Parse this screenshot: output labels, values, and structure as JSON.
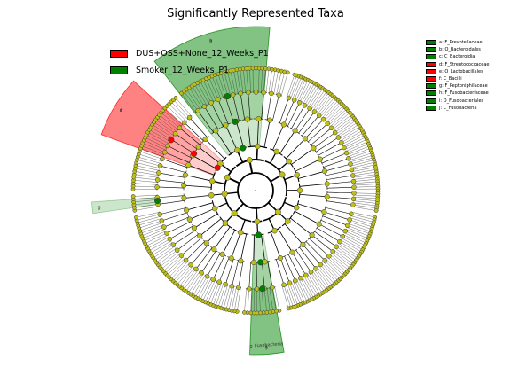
{
  "chart_data": {
    "type": "cladogram",
    "title": "Significantly Represented Taxa",
    "legend": {
      "placement": "top-left",
      "groups": [
        {
          "name": "DUS+OSS+None_12_Weeks_P1",
          "color": "#ff0000"
        },
        {
          "name": "Smoker_12_Weeks_P1",
          "color": "#008000"
        }
      ]
    },
    "clade_legend": {
      "placement": "top-right",
      "items": [
        {
          "letter": "a",
          "label": "a: F_Prevotellaceae",
          "group": "Smoker_12_Weeks_P1",
          "color": "#008000"
        },
        {
          "letter": "b",
          "label": "b: O_Bacteroidales",
          "group": "Smoker_12_Weeks_P1",
          "color": "#008000"
        },
        {
          "letter": "c",
          "label": "c: C_Bacteroidia",
          "group": "Smoker_12_Weeks_P1",
          "color": "#008000"
        },
        {
          "letter": "d",
          "label": "d: F_Streptococcaceae",
          "group": "DUS+OSS+None_12_Weeks_P1",
          "color": "#ff0000"
        },
        {
          "letter": "e",
          "label": "e: O_Lactobacillales",
          "group": "DUS+OSS+None_12_Weeks_P1",
          "color": "#ff0000"
        },
        {
          "letter": "f",
          "label": "f: C_Bacilli",
          "group": "DUS+OSS+None_12_Weeks_P1",
          "color": "#ff0000"
        },
        {
          "letter": "g",
          "label": "g: F_Peptoniphilaceae",
          "group": "Smoker_12_Weeks_P1",
          "color": "#008000"
        },
        {
          "letter": "h",
          "label": "h: F_Fusobacteriaceae",
          "group": "Smoker_12_Weeks_P1",
          "color": "#008000"
        },
        {
          "letter": "i",
          "label": "i: O_Fusobacteriales",
          "group": "Smoker_12_Weeks_P1",
          "color": "#008000"
        },
        {
          "letter": "j",
          "label": "j: C_Fusobacteria",
          "group": "Smoker_12_Weeks_P1",
          "color": "#008000"
        }
      ]
    },
    "highlighted_clades": [
      {
        "letters": [
          "a",
          "b",
          "c"
        ],
        "group": "Smoker_12_Weeks_P1",
        "color": "#008000",
        "angle_start": 322,
        "angle_end": 5
      },
      {
        "letters": [
          "d",
          "e",
          "f"
        ],
        "group": "DUS+OSS+None_12_Weeks_P1",
        "color": "#ff0000",
        "angle_start": 290,
        "angle_end": 312
      },
      {
        "letters": [
          "g"
        ],
        "group": "Smoker_12_Weeks_P1",
        "color": "#008000",
        "angle_start": 262,
        "angle_end": 266
      },
      {
        "letters": [
          "h",
          "i",
          "j"
        ],
        "group": "Smoker_12_Weeks_P1",
        "color": "#008000",
        "angle_start": 170,
        "angle_end": 182
      }
    ],
    "phylum_label": "p_Fusobacteria",
    "axis": {
      "show": false,
      "grid": false
    },
    "node_color_default": "#bfbf1a"
  }
}
